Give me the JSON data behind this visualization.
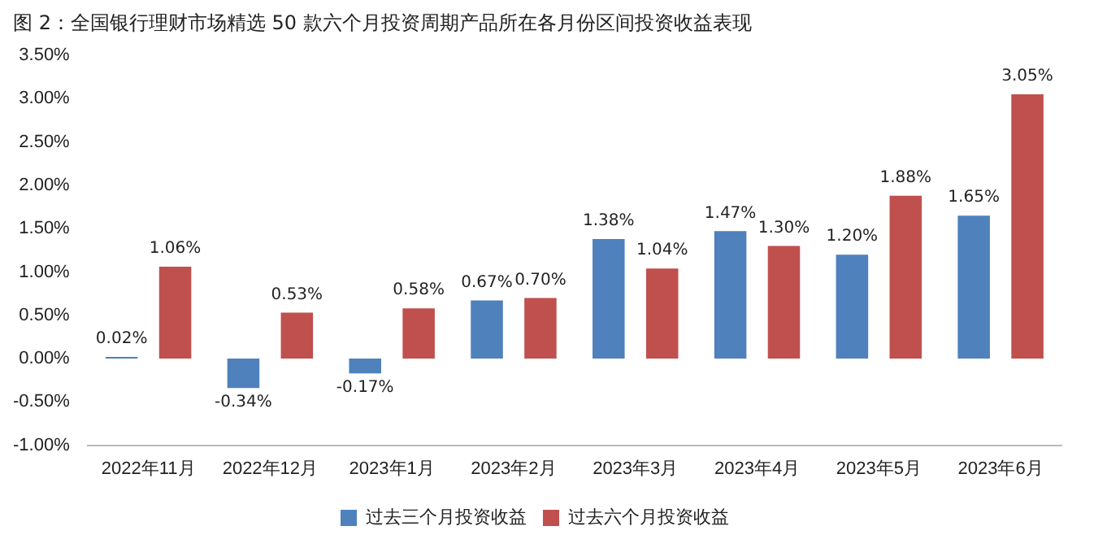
{
  "chart_data": {
    "type": "bar",
    "title": "图 2：全国银行理财市场精选 50 款六个月投资周期产品所在各月份区间投资收益表现",
    "categories": [
      "2022年11月",
      "2022年12月",
      "2023年1月",
      "2023年2月",
      "2023年3月",
      "2023年4月",
      "2023年5月",
      "2023年6月"
    ],
    "series": [
      {
        "name": "过去三个月投资收益",
        "color": "#4f81bd",
        "values": [
          0.02,
          -0.34,
          -0.17,
          0.67,
          1.38,
          1.47,
          1.2,
          1.65
        ],
        "value_labels": [
          "0.02%",
          "-0.34%",
          "-0.17%",
          "0.67%",
          "1.38%",
          "1.47%",
          "1.20%",
          "1.65%"
        ]
      },
      {
        "name": "过去六个月投资收益",
        "color": "#c0504d",
        "values": [
          1.06,
          0.53,
          0.58,
          0.7,
          1.04,
          1.3,
          1.88,
          3.05
        ],
        "value_labels": [
          "1.06%",
          "0.53%",
          "0.58%",
          "0.70%",
          "1.04%",
          "1.30%",
          "1.88%",
          "3.05%"
        ]
      }
    ],
    "ylim": [
      -1,
      3.5
    ],
    "yticks": [
      {
        "value": -1,
        "label": "-1.00%"
      },
      {
        "value": -0.5,
        "label": "-0.50%"
      },
      {
        "value": 0,
        "label": "0.00%"
      },
      {
        "value": 0.5,
        "label": "0.50%"
      },
      {
        "value": 1,
        "label": "1.00%"
      },
      {
        "value": 1.5,
        "label": "1.50%"
      },
      {
        "value": 2,
        "label": "2.00%"
      },
      {
        "value": 2.5,
        "label": "2.50%"
      },
      {
        "value": 3,
        "label": "3.00%"
      },
      {
        "value": 3.5,
        "label": "3.50%"
      }
    ],
    "grid": false,
    "legend": "bottom"
  }
}
